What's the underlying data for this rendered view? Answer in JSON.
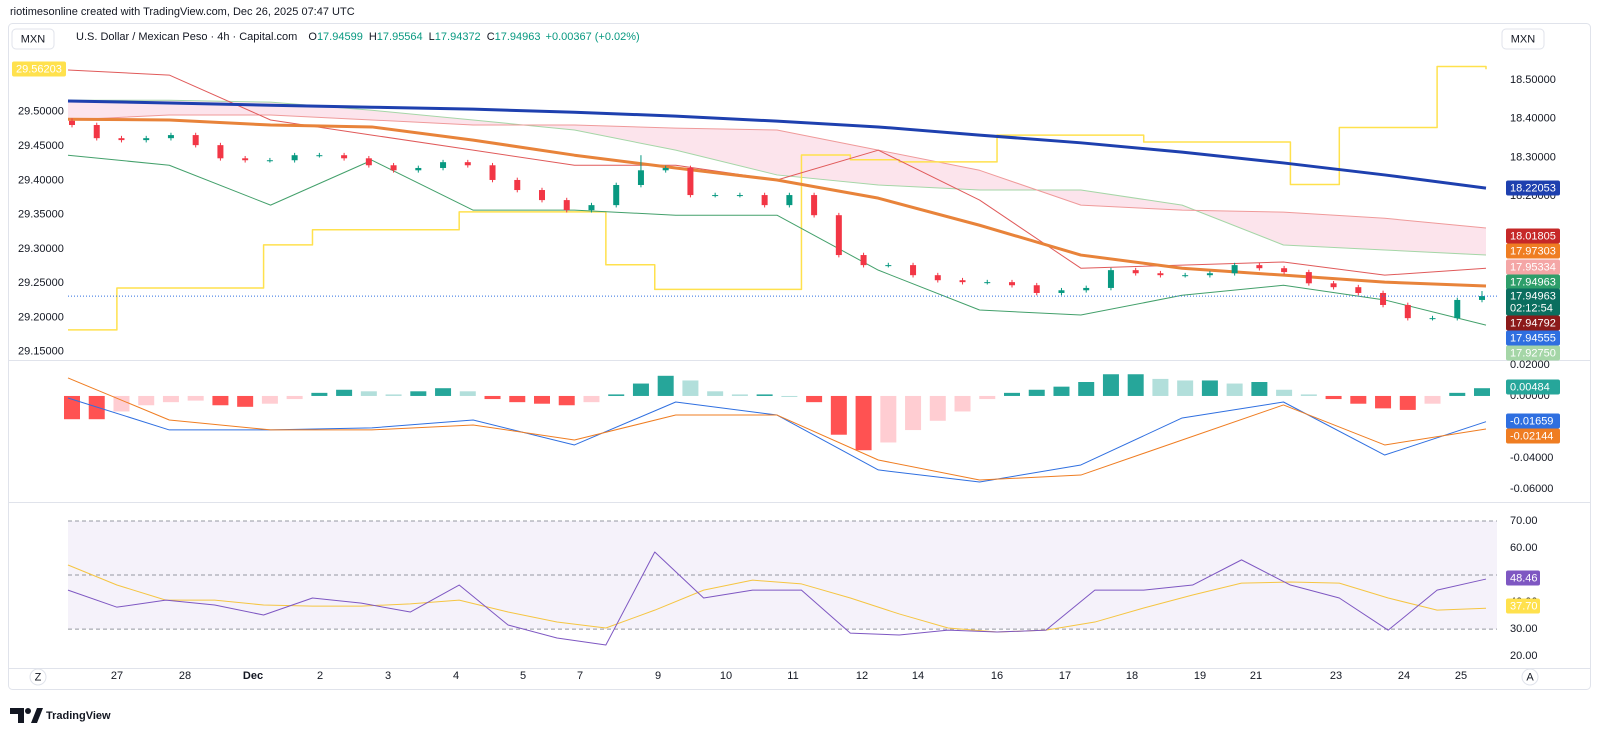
{
  "header": {
    "credit": "riotimesonline created with TradingView.com, Dec 26, 2025 07:47 UTC"
  },
  "legend": {
    "currency": "MXN",
    "title": "U.S. Dollar / Mexican Peso · 4h · Capital.com",
    "ohlc": [
      {
        "key": "O",
        "value": "17.94599"
      },
      {
        "key": "H",
        "value": "17.95564"
      },
      {
        "key": "L",
        "value": "17.94372"
      },
      {
        "key": "C",
        "value": "17.94963"
      }
    ],
    "change": "+0.00367 (+0.02%)"
  },
  "right_currency": "MXN",
  "main": {
    "ylim": [
      17.782,
      18.645
    ],
    "yticks": [
      {
        "value": 18.5,
        "label": "18.50000"
      },
      {
        "value": 18.4,
        "label": "18.40000"
      },
      {
        "value": 18.3,
        "label": "18.30000"
      },
      {
        "value": 18.2,
        "label": "18.20000"
      }
    ],
    "left_ylim": [
      29.141,
      29.628
    ],
    "left_yticks": [
      {
        "value": 29.5,
        "label": "29.50000"
      },
      {
        "value": 29.45,
        "label": "29.45000"
      },
      {
        "value": 29.4,
        "label": "29.40000"
      },
      {
        "value": 29.35,
        "label": "29.35000"
      },
      {
        "value": 29.3,
        "label": "29.30000"
      },
      {
        "value": 29.25,
        "label": "29.25000"
      },
      {
        "value": 29.2,
        "label": "29.20000"
      },
      {
        "value": 29.15,
        "label": "29.15000"
      }
    ],
    "candles": {
      "up_color": "#089981",
      "down_color": "#f23645",
      "open": [
        18.395,
        18.384,
        18.35,
        18.345,
        18.35,
        18.358,
        18.332,
        18.298,
        18.293,
        18.293,
        18.306,
        18.306,
        18.298,
        18.28,
        18.267,
        18.273,
        18.288,
        18.28,
        18.242,
        18.216,
        18.19,
        18.164,
        18.177,
        18.229,
        18.267,
        18.273,
        18.203,
        18.203,
        18.203,
        18.177,
        18.203,
        18.151,
        18.048,
        18.022,
        18.022,
        17.996,
        17.983,
        17.978,
        17.978,
        17.97,
        17.95,
        17.957,
        17.963,
        18.009,
        18.001,
        17.996,
        17.996,
        18.001,
        18.022,
        18.014,
        18.004,
        17.975,
        17.965,
        17.95,
        17.919,
        17.885,
        17.885,
        17.932
      ],
      "high": [
        18.401,
        18.39,
        18.356,
        18.356,
        18.364,
        18.364,
        18.338,
        18.304,
        18.299,
        18.312,
        18.312,
        18.312,
        18.304,
        18.286,
        18.279,
        18.294,
        18.294,
        18.286,
        18.248,
        18.222,
        18.196,
        18.183,
        18.235,
        18.306,
        18.279,
        18.279,
        18.209,
        18.209,
        18.209,
        18.209,
        18.209,
        18.157,
        18.054,
        18.028,
        18.028,
        18.002,
        17.989,
        17.984,
        17.984,
        17.976,
        17.963,
        17.969,
        18.015,
        18.015,
        18.007,
        18.002,
        18.007,
        18.028,
        18.028,
        18.02,
        18.01,
        17.981,
        17.971,
        17.956,
        17.925,
        17.891,
        17.938,
        17.955
      ],
      "low": [
        18.378,
        18.344,
        18.339,
        18.339,
        18.344,
        18.326,
        18.292,
        18.287,
        18.287,
        18.287,
        18.3,
        18.292,
        18.274,
        18.261,
        18.261,
        18.267,
        18.274,
        18.236,
        18.21,
        18.184,
        18.158,
        18.158,
        18.171,
        18.223,
        18.261,
        18.197,
        18.197,
        18.197,
        18.171,
        18.171,
        18.145,
        18.042,
        18.016,
        18.016,
        17.99,
        17.977,
        17.972,
        17.972,
        17.964,
        17.944,
        17.944,
        17.951,
        17.957,
        17.995,
        17.99,
        17.99,
        17.99,
        17.995,
        18.008,
        17.998,
        17.969,
        17.959,
        17.944,
        17.913,
        17.879,
        17.879,
        17.879,
        17.926
      ],
      "close": [
        18.384,
        18.35,
        18.345,
        18.35,
        18.358,
        18.332,
        18.298,
        18.293,
        18.293,
        18.306,
        18.306,
        18.298,
        18.28,
        18.267,
        18.273,
        18.288,
        18.28,
        18.242,
        18.216,
        18.19,
        18.164,
        18.177,
        18.229,
        18.267,
        18.273,
        18.203,
        18.203,
        18.203,
        18.177,
        18.203,
        18.151,
        18.048,
        18.022,
        18.022,
        17.996,
        17.983,
        17.978,
        17.978,
        17.97,
        17.95,
        17.957,
        17.963,
        18.009,
        18.001,
        17.996,
        17.996,
        18.001,
        18.022,
        18.014,
        18.004,
        17.975,
        17.965,
        17.95,
        17.919,
        17.885,
        17.885,
        17.932,
        17.942
      ]
    },
    "cloud": {
      "fill": "#f8bbd0",
      "span_a_color": "#a5d6a7",
      "span_b_color": "#ef9a9a",
      "span_a": [
        18.448,
        18.448,
        18.443,
        18.422,
        18.397,
        18.371,
        18.319,
        18.255,
        18.229,
        18.216,
        18.216,
        18.177,
        18.074,
        18.061,
        18.048
      ],
      "span_b": [
        18.397,
        18.41,
        18.41,
        18.397,
        18.384,
        18.384,
        18.376,
        18.371,
        18.319,
        18.267,
        18.177,
        18.164,
        18.159,
        18.143,
        18.118
      ]
    },
    "lines": [
      {
        "color": "#e05a5a",
        "width": 1,
        "values": [
          18.526,
          18.513,
          18.397,
          18.358,
          18.319,
          18.28,
          18.28,
          18.242,
          18.319,
          18.19,
          18.014,
          18.022,
          18.03,
          17.996,
          18.014
        ]
      },
      {
        "color": "#43a06b",
        "width": 1,
        "values": [
          18.306,
          18.28,
          18.177,
          18.293,
          18.164,
          18.164,
          18.151,
          18.151,
          18.009,
          17.906,
          17.893,
          17.944,
          17.97,
          17.932,
          17.867
        ]
      },
      {
        "color": "#e8833a",
        "width": 3,
        "values": [
          18.399,
          18.397,
          18.384,
          18.379,
          18.345,
          18.306,
          18.273,
          18.242,
          18.195,
          18.125,
          18.048,
          18.014,
          17.996,
          17.978,
          17.968
        ]
      },
      {
        "color": "#1e40af",
        "width": 3,
        "values": [
          18.446,
          18.441,
          18.435,
          18.43,
          18.425,
          18.417,
          18.407,
          18.394,
          18.379,
          18.358,
          18.338,
          18.314,
          18.286,
          18.255,
          18.221
        ]
      }
    ],
    "yellow": {
      "color": "#ffe14d",
      "values": [
        29.182,
        29.243,
        29.243,
        29.243,
        29.306,
        29.328,
        29.328,
        29.328,
        29.354,
        29.354,
        29.354,
        29.277,
        29.241,
        29.241,
        29.241,
        29.437,
        29.43,
        29.427,
        29.427,
        29.466,
        29.466,
        29.466,
        29.456,
        29.456,
        29.456,
        29.394,
        29.477,
        29.477,
        29.566,
        29.562
      ]
    },
    "left_tag": {
      "label": "29.56203",
      "color": "#ffe14d"
    },
    "price_tags": [
      {
        "label": "18.22053",
        "color": "#1e40af"
      },
      {
        "label": "18.01805",
        "color": "#c62828"
      },
      {
        "label": "17.97303",
        "color": "#ef7d22"
      },
      {
        "label": "17.95334",
        "color": "#f4a6a6"
      },
      {
        "label": "17.94963",
        "color": "#2e9e6a"
      },
      {
        "label": "17.94963",
        "color": "#0b6e5f",
        "countdown": "02:12:54"
      },
      {
        "label": "17.94792",
        "color": "#8b1a1a"
      },
      {
        "label": "17.94555",
        "color": "#2f6fe0"
      },
      {
        "label": "17.92750",
        "color": "#a5d6a7"
      }
    ]
  },
  "macd": {
    "ylim": [
      -0.0671,
      0.0219
    ],
    "yticks": [
      {
        "value": 0.02,
        "label": "0.02000"
      },
      {
        "value": 0,
        "label": "0.00000"
      },
      {
        "value": -0.04,
        "label": "-0.04000"
      },
      {
        "value": -0.06,
        "label": "-0.06000"
      }
    ],
    "histogram": [
      -0.015,
      -0.015,
      -0.01,
      -0.006,
      -0.004,
      -0.003,
      -0.006,
      -0.007,
      -0.005,
      -0.002,
      0.002,
      0.004,
      0.003,
      0.001,
      0.003,
      0.005,
      0.003,
      -0.002,
      -0.004,
      -0.005,
      -0.006,
      -0.004,
      0.001,
      0.008,
      0.013,
      0.01,
      0.003,
      0.001,
      0.001,
      0,
      -0.004,
      -0.025,
      -0.035,
      -0.03,
      -0.022,
      -0.016,
      -0.01,
      -0.002,
      0.002,
      0.004,
      0.006,
      0.009,
      0.014,
      0.014,
      0.011,
      0.01,
      0.01,
      0.008,
      0.009,
      0.004,
      0.001,
      -0.002,
      -0.005,
      -0.008,
      -0.009,
      -0.005,
      0.002,
      0.005
    ],
    "macd_line": {
      "color": "#2f6fe0",
      "values": [
        -0.0013,
        -0.0219,
        -0.0219,
        -0.0206,
        -0.0155,
        -0.0316,
        -0.0039,
        -0.0123,
        -0.0477,
        -0.0555,
        -0.0445,
        -0.0142,
        -0.0039,
        -0.0381,
        -0.0166
      ]
    },
    "signal_line": {
      "color": "#ef7d22",
      "values": [
        0.0116,
        -0.0155,
        -0.0219,
        -0.0219,
        -0.0187,
        -0.0284,
        -0.0123,
        -0.0123,
        -0.0413,
        -0.0542,
        -0.051,
        -0.0284,
        -0.0058,
        -0.0316,
        -0.0213
      ]
    },
    "tags": [
      {
        "label": "0.00484",
        "color": "#26a69a"
      },
      {
        "label": "-0.01659",
        "color": "#2f6fe0"
      },
      {
        "label": "-0.02144",
        "color": "#ef7d22"
      }
    ]
  },
  "rsi": {
    "ylim": [
      15.6,
      75.9
    ],
    "yticks": [
      {
        "value": 70,
        "label": "70.00"
      },
      {
        "value": 60,
        "label": "60.00"
      },
      {
        "value": 50,
        "label": "50.00"
      },
      {
        "value": 40,
        "label": "40.00"
      },
      {
        "value": 30,
        "label": "30.00"
      },
      {
        "value": 20,
        "label": "20.00"
      }
    ],
    "bands": [
      70,
      50,
      30
    ],
    "rsi_line": {
      "color": "#7e57c2",
      "values": [
        44.4,
        38.1,
        40.7,
        38.9,
        35.2,
        41.5,
        39.6,
        36.3,
        46.3,
        31.5,
        26.7,
        24.1,
        58.5,
        41.5,
        44.4,
        44.4,
        28.5,
        27.8,
        29.6,
        28.9,
        29.6,
        44.4,
        44.4,
        46.3,
        55.6,
        46.3,
        41.5,
        29.6,
        44.4,
        48.5
      ]
    },
    "ma_line": {
      "color": "#f5c542",
      "values": [
        53.7,
        46.3,
        40.7,
        40.7,
        38.9,
        38.5,
        38.5,
        39.3,
        40.7,
        36.3,
        32.6,
        30.4,
        37.0,
        44.4,
        48.1,
        46.7,
        41.5,
        35.6,
        30.4,
        28.9,
        29.6,
        32.6,
        37.8,
        42.6,
        47.0,
        47.4,
        47.0,
        41.5,
        37.0,
        37.7
      ]
    },
    "tags": [
      {
        "label": "48.46",
        "color": "#7e57c2"
      },
      {
        "label": "37.70",
        "color": "#ffe14d"
      }
    ]
  },
  "x_labels": [
    "27",
    "28",
    "Dec",
    "2",
    "3",
    "4",
    "5",
    "7",
    "9",
    "10",
    "11",
    "12",
    "14",
    "16",
    "17",
    "18",
    "19",
    "21",
    "23",
    "24",
    "25"
  ],
  "footer": {
    "left_button": "Z",
    "right_button": "A",
    "brand": "TradingView"
  }
}
